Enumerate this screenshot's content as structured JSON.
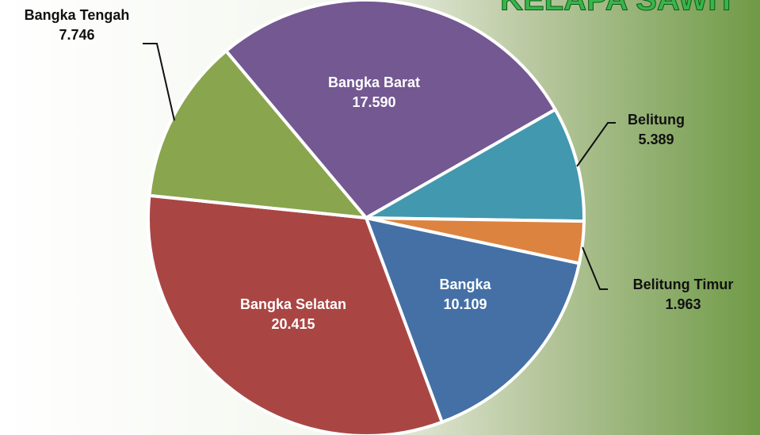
{
  "chart_data": {
    "type": "pie",
    "title": "KELAPA SAWIT",
    "categories": [
      "Bangka Barat",
      "Belitung",
      "Belitung Timur",
      "Bangka",
      "Bangka Selatan",
      "Bangka Tengah"
    ],
    "values": [
      17590,
      5389,
      1963,
      10109,
      20415,
      7746
    ],
    "value_labels": [
      "17.590",
      "5.389",
      "1.963",
      "10.109",
      "20.415",
      "7.746"
    ],
    "colors": [
      "#735892",
      "#4298ae",
      "#dc8340",
      "#4470a5",
      "#a94644",
      "#89a54e"
    ]
  }
}
